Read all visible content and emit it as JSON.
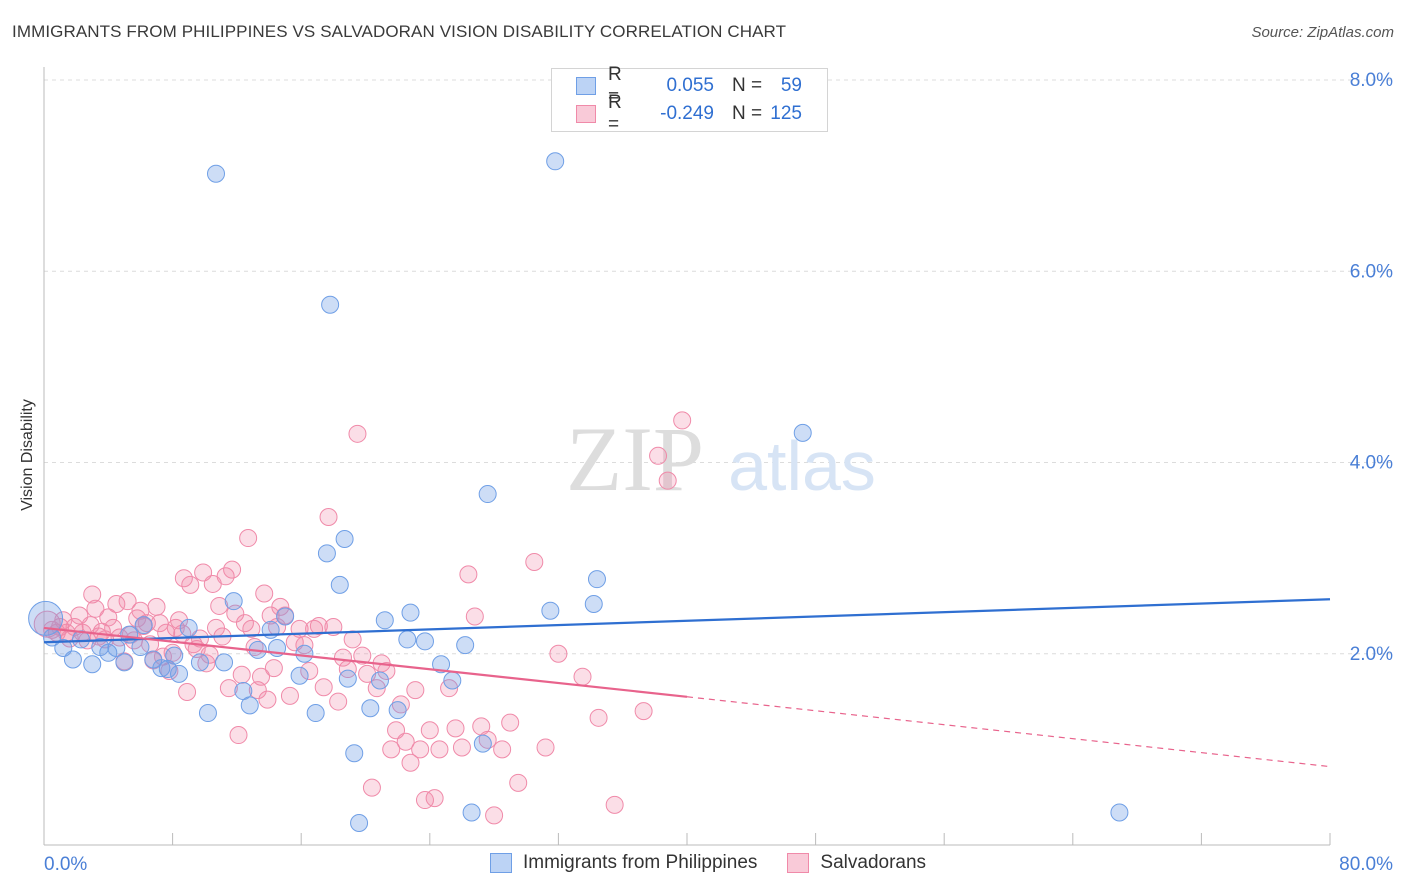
{
  "header": {
    "title": "IMMIGRANTS FROM PHILIPPINES VS SALVADORAN VISION DISABILITY CORRELATION CHART",
    "source": "Source: ZipAtlas.com"
  },
  "watermark": {
    "part1": "ZIP",
    "part2": "atlas"
  },
  "legend": {
    "rows": [
      {
        "r_label": "R =",
        "r_value": "0.055",
        "n_label": "N =",
        "n_value": "59",
        "color": "#6f9fe6"
      },
      {
        "r_label": "R =",
        "r_value": "-0.249",
        "n_label": "N =",
        "n_value": "125",
        "color": "#f08aa9"
      }
    ]
  },
  "bottom_legend": {
    "items": [
      {
        "label": "Immigrants from Philippines",
        "color": "#6f9fe6"
      },
      {
        "label": "Salvadorans",
        "color": "#f08aa9"
      }
    ]
  },
  "chart_data": {
    "type": "scatter",
    "title": "IMMIGRANTS FROM PHILIPPINES VS SALVADORAN VISION DISABILITY CORRELATION CHART",
    "xlabel": "",
    "ylabel": "Vision Disability",
    "xlim": [
      0,
      80
    ],
    "ylim": [
      0,
      8.0
    ],
    "x_tick_labels": [
      "0.0%",
      "80.0%"
    ],
    "y_ticks": [
      2.0,
      4.0,
      6.0,
      8.0
    ],
    "y_tick_labels": [
      "2.0%",
      "4.0%",
      "6.0%",
      "8.0%"
    ],
    "grid": true,
    "legend_position": "top-center",
    "series": [
      {
        "name": "Immigrants from Philippines",
        "color": "#6f9fe6",
        "line_color": "#2f6fd1",
        "trend": {
          "x": [
            0,
            80
          ],
          "y": [
            2.12,
            2.57
          ]
        },
        "points": [
          [
            0.1,
            2.37
          ],
          [
            0.5,
            2.17
          ],
          [
            1.2,
            2.06
          ],
          [
            1.8,
            1.94
          ],
          [
            2.3,
            2.15
          ],
          [
            3.0,
            1.89
          ],
          [
            3.5,
            2.07
          ],
          [
            4.0,
            2.01
          ],
          [
            4.5,
            2.06
          ],
          [
            5.0,
            1.91
          ],
          [
            5.3,
            2.2
          ],
          [
            6.0,
            2.07
          ],
          [
            6.2,
            2.3
          ],
          [
            6.8,
            1.94
          ],
          [
            7.3,
            1.85
          ],
          [
            7.7,
            1.84
          ],
          [
            8.1,
            1.98
          ],
          [
            8.4,
            1.79
          ],
          [
            9.0,
            2.27
          ],
          [
            9.7,
            1.91
          ],
          [
            10.2,
            1.38
          ],
          [
            10.7,
            7.02
          ],
          [
            11.2,
            1.91
          ],
          [
            11.8,
            2.55
          ],
          [
            12.4,
            1.61
          ],
          [
            12.8,
            1.46
          ],
          [
            13.3,
            2.04
          ],
          [
            14.1,
            2.25
          ],
          [
            14.5,
            2.06
          ],
          [
            15.0,
            2.39
          ],
          [
            15.9,
            1.77
          ],
          [
            16.2,
            2.0
          ],
          [
            16.9,
            1.38
          ],
          [
            17.6,
            3.05
          ],
          [
            17.8,
            5.65
          ],
          [
            18.4,
            2.72
          ],
          [
            18.7,
            3.2
          ],
          [
            18.9,
            1.74
          ],
          [
            19.3,
            0.96
          ],
          [
            19.6,
            0.23
          ],
          [
            20.3,
            1.43
          ],
          [
            20.9,
            1.72
          ],
          [
            21.2,
            2.35
          ],
          [
            22.0,
            1.41
          ],
          [
            22.6,
            2.15
          ],
          [
            22.8,
            2.43
          ],
          [
            23.7,
            2.13
          ],
          [
            24.7,
            1.89
          ],
          [
            25.4,
            1.72
          ],
          [
            26.2,
            2.09
          ],
          [
            26.6,
            0.34
          ],
          [
            27.3,
            1.06
          ],
          [
            27.6,
            3.67
          ],
          [
            31.5,
            2.45
          ],
          [
            31.8,
            7.15
          ],
          [
            34.2,
            2.52
          ],
          [
            34.4,
            2.78
          ],
          [
            47.2,
            4.31
          ],
          [
            66.9,
            0.34
          ]
        ]
      },
      {
        "name": "Salvadorans",
        "color": "#f08aa9",
        "line_color": "#e8638c",
        "trend": {
          "x": [
            0,
            40
          ],
          "y": [
            2.27,
            1.55
          ]
        },
        "trend_dashed": {
          "x": [
            40,
            80
          ],
          "y": [
            1.55,
            0.82
          ]
        },
        "points": [
          [
            0.2,
            2.31
          ],
          [
            0.5,
            2.25
          ],
          [
            0.8,
            2.22
          ],
          [
            1.0,
            2.28
          ],
          [
            1.2,
            2.35
          ],
          [
            1.4,
            2.22
          ],
          [
            1.6,
            2.16
          ],
          [
            1.9,
            2.28
          ],
          [
            2.2,
            2.4
          ],
          [
            2.4,
            2.22
          ],
          [
            2.7,
            2.14
          ],
          [
            2.9,
            2.3
          ],
          [
            3.0,
            2.62
          ],
          [
            3.2,
            2.47
          ],
          [
            3.4,
            2.18
          ],
          [
            3.6,
            2.23
          ],
          [
            3.8,
            2.15
          ],
          [
            4.0,
            2.38
          ],
          [
            4.3,
            2.27
          ],
          [
            4.5,
            2.52
          ],
          [
            4.7,
            2.17
          ],
          [
            5.0,
            1.92
          ],
          [
            5.2,
            2.55
          ],
          [
            5.4,
            2.2
          ],
          [
            5.6,
            2.14
          ],
          [
            5.8,
            2.37
          ],
          [
            6.0,
            2.45
          ],
          [
            6.2,
            2.29
          ],
          [
            6.4,
            2.32
          ],
          [
            6.6,
            2.1
          ],
          [
            6.8,
            1.93
          ],
          [
            7.0,
            2.49
          ],
          [
            7.2,
            2.32
          ],
          [
            7.4,
            1.97
          ],
          [
            7.6,
            2.22
          ],
          [
            7.8,
            1.82
          ],
          [
            8.0,
            2.01
          ],
          [
            8.2,
            2.27
          ],
          [
            8.4,
            2.35
          ],
          [
            8.6,
            2.21
          ],
          [
            8.7,
            2.79
          ],
          [
            8.9,
            1.6
          ],
          [
            9.1,
            2.72
          ],
          [
            9.3,
            2.1
          ],
          [
            9.5,
            2.05
          ],
          [
            9.7,
            2.16
          ],
          [
            9.9,
            2.85
          ],
          [
            10.1,
            1.9
          ],
          [
            10.3,
            1.99
          ],
          [
            10.5,
            2.73
          ],
          [
            10.7,
            2.27
          ],
          [
            10.9,
            2.5
          ],
          [
            11.1,
            2.18
          ],
          [
            11.3,
            2.81
          ],
          [
            11.5,
            1.64
          ],
          [
            11.7,
            2.88
          ],
          [
            11.9,
            2.42
          ],
          [
            12.1,
            1.15
          ],
          [
            12.3,
            1.78
          ],
          [
            12.5,
            2.32
          ],
          [
            12.7,
            3.21
          ],
          [
            12.9,
            2.26
          ],
          [
            13.1,
            2.07
          ],
          [
            13.3,
            1.62
          ],
          [
            13.5,
            1.76
          ],
          [
            13.7,
            2.63
          ],
          [
            13.9,
            1.52
          ],
          [
            14.1,
            2.4
          ],
          [
            14.3,
            1.85
          ],
          [
            14.5,
            2.28
          ],
          [
            14.7,
            2.49
          ],
          [
            15.0,
            2.4
          ],
          [
            15.3,
            1.56
          ],
          [
            15.6,
            2.12
          ],
          [
            15.9,
            2.26
          ],
          [
            16.2,
            2.09
          ],
          [
            16.5,
            1.82
          ],
          [
            16.8,
            2.26
          ],
          [
            17.1,
            2.29
          ],
          [
            17.4,
            1.65
          ],
          [
            17.7,
            3.43
          ],
          [
            18.0,
            2.28
          ],
          [
            18.3,
            1.5
          ],
          [
            18.6,
            1.96
          ],
          [
            18.9,
            1.84
          ],
          [
            19.2,
            2.15
          ],
          [
            19.5,
            4.3
          ],
          [
            19.8,
            1.98
          ],
          [
            20.1,
            1.79
          ],
          [
            20.4,
            0.6
          ],
          [
            20.7,
            1.64
          ],
          [
            21.0,
            1.9
          ],
          [
            21.3,
            1.82
          ],
          [
            21.6,
            1.0
          ],
          [
            21.9,
            1.2
          ],
          [
            22.2,
            1.47
          ],
          [
            22.5,
            1.08
          ],
          [
            22.8,
            0.86
          ],
          [
            23.1,
            1.62
          ],
          [
            23.4,
            1.0
          ],
          [
            23.7,
            0.47
          ],
          [
            24.0,
            1.2
          ],
          [
            24.3,
            0.49
          ],
          [
            24.6,
            1.0
          ],
          [
            25.2,
            1.64
          ],
          [
            25.6,
            1.22
          ],
          [
            26.0,
            1.02
          ],
          [
            26.4,
            2.83
          ],
          [
            26.8,
            2.39
          ],
          [
            27.2,
            1.24
          ],
          [
            27.6,
            1.1
          ],
          [
            28.0,
            0.31
          ],
          [
            28.5,
            1.0
          ],
          [
            29.0,
            1.28
          ],
          [
            29.5,
            0.65
          ],
          [
            30.5,
            2.96
          ],
          [
            31.2,
            1.02
          ],
          [
            32.0,
            2.0
          ],
          [
            33.5,
            1.76
          ],
          [
            34.5,
            1.33
          ],
          [
            35.5,
            0.42
          ],
          [
            37.3,
            1.4
          ],
          [
            38.2,
            4.07
          ],
          [
            38.8,
            3.81
          ],
          [
            39.7,
            4.44
          ]
        ]
      }
    ]
  }
}
